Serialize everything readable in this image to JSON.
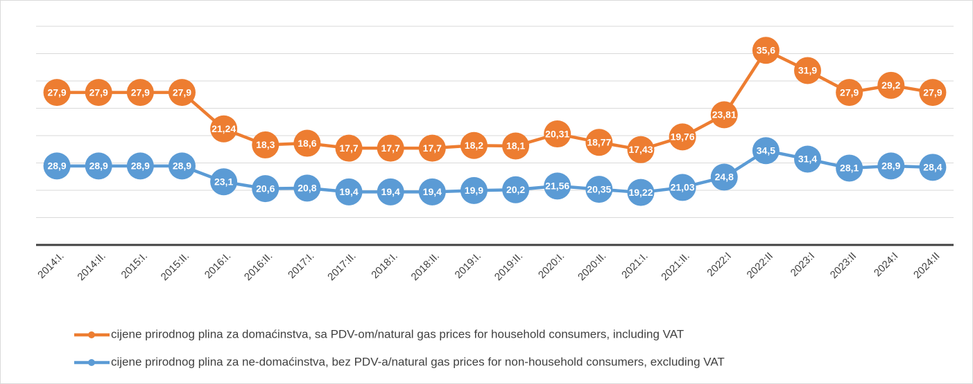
{
  "chart_data": {
    "type": "line",
    "categories": [
      "2014:I.",
      "2014:II.",
      "2015:I.",
      "2015:II.",
      "2016:I.",
      "2016:II.",
      "2017:I.",
      "2017:II.",
      "2018:I.",
      "2018:II.",
      "2019:I.",
      "2019:II.",
      "2020:I.",
      "2020:II.",
      "2021:I.",
      "2021:II.",
      "2022:I",
      "2022:II",
      "2023:I",
      "2023:II",
      "2024:I",
      "2024:II"
    ],
    "series": [
      {
        "name": "cijene prirodnog plina za domaćinstva, sa PDV-om/natural gas prices for household consumers, including VAT",
        "color": "#ed7d31",
        "values": [
          27.9,
          27.9,
          27.9,
          27.9,
          21.24,
          18.3,
          18.6,
          17.7,
          17.7,
          17.7,
          18.2,
          18.1,
          20.31,
          18.77,
          17.43,
          19.76,
          23.81,
          35.6,
          31.9,
          27.9,
          29.2,
          27.9
        ],
        "value_labels": [
          "27,9",
          "27,9",
          "27,9",
          "27,9",
          "21,24",
          "18,3",
          "18,6",
          "17,7",
          "17,7",
          "17,7",
          "18,2",
          "18,1",
          "20,31",
          "18,77",
          "17,43",
          "19,76",
          "23,81",
          "35,6",
          "31,9",
          "27,9",
          "29,2",
          "27,9"
        ]
      },
      {
        "name": "cijene prirodnog plina za ne-domaćinstva, bez PDV-a/natural gas prices for non-household consumers, excluding VAT",
        "color": "#5b9bd5",
        "axis": "y2",
        "values": [
          28.9,
          28.9,
          28.9,
          28.9,
          23.1,
          20.6,
          20.8,
          19.4,
          19.4,
          19.4,
          19.9,
          20.2,
          21.56,
          20.35,
          19.22,
          21.03,
          24.8,
          34.5,
          31.4,
          28.1,
          28.9,
          28.4
        ],
        "value_labels": [
          "28,9",
          "28,9",
          "28,9",
          "28,9",
          "23,1",
          "20,6",
          "20,8",
          "19,4",
          "19,4",
          "19,4",
          "19,9",
          "20,2",
          "21,56",
          "20,35",
          "19,22",
          "21,03",
          "24,8",
          "34,5",
          "31,4",
          "28,1",
          "28,9",
          "28,4"
        ]
      }
    ],
    "ylim": [
      0,
      40
    ],
    "yticks": [
      0,
      5,
      10,
      15,
      20,
      25,
      30,
      35,
      40
    ],
    "y2lim": [
      0,
      80
    ],
    "grid": true
  }
}
